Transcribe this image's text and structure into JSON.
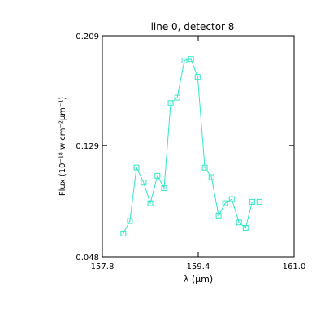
{
  "colors": {
    "background": "#ffffff",
    "axes": "#000000",
    "series": "#33e6c4"
  },
  "chart_data": {
    "type": "line",
    "title": "line 0, detector 8",
    "xlabel": "λ (μm)",
    "ylabel": "Flux (10⁻¹⁸ w cm⁻²μm⁻¹)",
    "xlim": [
      157.8,
      161.0
    ],
    "ylim": [
      0.048,
      0.209
    ],
    "x_ticks": [
      "157.8",
      "159.4",
      "161.0"
    ],
    "y_ticks": [
      "0.048",
      "0.129",
      "0.209"
    ],
    "grid": false,
    "marker": "square",
    "series": [
      {
        "x": [
          158.15,
          158.26,
          158.37,
          158.49,
          158.6,
          158.72,
          158.83,
          158.94,
          159.05,
          159.17,
          159.28,
          159.39,
          159.51,
          159.62,
          159.74,
          159.85,
          159.96,
          160.08,
          160.19,
          160.3,
          160.42
        ],
        "y": [
          0.065,
          0.074,
          0.113,
          0.102,
          0.087,
          0.107,
          0.098,
          0.16,
          0.164,
          0.191,
          0.192,
          0.179,
          0.113,
          0.106,
          0.078,
          0.087,
          0.09,
          0.073,
          0.069,
          0.088,
          0.088
        ]
      }
    ]
  }
}
